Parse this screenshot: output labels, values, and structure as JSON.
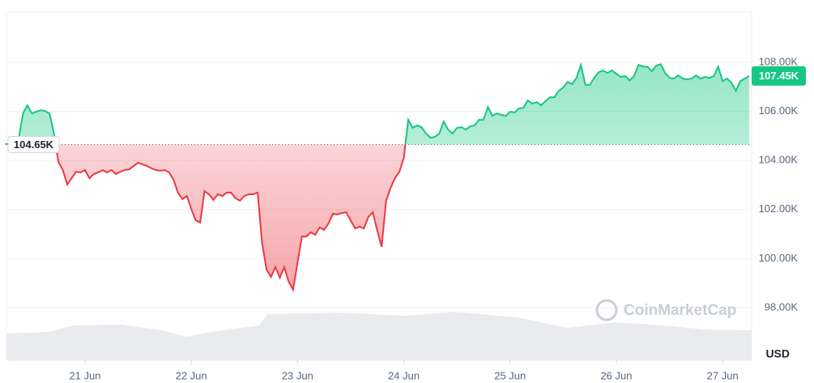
{
  "chart_data": {
    "type": "line",
    "categories": [
      null,
      null,
      null,
      null,
      null,
      null,
      null,
      null,
      null,
      null,
      null,
      null,
      null,
      null,
      null,
      null,
      null,
      null,
      "21 Jun",
      null,
      null,
      null,
      null,
      null,
      null,
      null,
      null,
      null,
      null,
      null,
      null,
      null,
      null,
      null,
      null,
      null,
      null,
      null,
      null,
      null,
      null,
      null,
      "22 Jun",
      null,
      null,
      null,
      null,
      null,
      null,
      null,
      null,
      null,
      null,
      null,
      null,
      null,
      null,
      null,
      null,
      null,
      null,
      null,
      null,
      null,
      null,
      null,
      "23 Jun",
      null,
      null,
      null,
      null,
      null,
      null,
      null,
      null,
      null,
      null,
      null,
      null,
      null,
      null,
      null,
      null,
      null,
      null,
      null,
      null,
      null,
      null,
      null,
      "24 Jun",
      null,
      null,
      null,
      null,
      null,
      null,
      null,
      null,
      null,
      null,
      null,
      null,
      null,
      null,
      null,
      null,
      null,
      null,
      null,
      null,
      null,
      null,
      null,
      "25 Jun",
      null,
      null,
      null,
      null,
      null,
      null,
      null,
      null,
      null,
      null,
      null,
      null,
      null,
      null,
      null,
      null,
      null,
      null,
      null,
      null,
      null,
      null,
      null,
      "26 Jun",
      null,
      null,
      null,
      null,
      null,
      null,
      null,
      null,
      null,
      null,
      null,
      null,
      null,
      null,
      null,
      null,
      null,
      null,
      null,
      null,
      null,
      null,
      null,
      "27 Jun",
      null,
      null,
      null,
      null,
      null,
      null
    ],
    "values": [
      104.67,
      104.67,
      104.7,
      104.86,
      105.92,
      106.25,
      105.92,
      105.99,
      106.05,
      106.02,
      105.92,
      105.1,
      103.94,
      103.61,
      103.02,
      103.28,
      103.54,
      103.51,
      103.61,
      103.28,
      103.45,
      103.51,
      103.61,
      103.51,
      103.61,
      103.45,
      103.54,
      103.61,
      103.64,
      103.78,
      103.91,
      103.84,
      103.78,
      103.68,
      103.61,
      103.58,
      103.61,
      103.51,
      103.21,
      102.69,
      102.42,
      102.55,
      102.03,
      101.56,
      101.47,
      102.75,
      102.62,
      102.39,
      102.62,
      102.55,
      102.69,
      102.69,
      102.46,
      102.36,
      102.55,
      102.62,
      102.62,
      102.69,
      100.64,
      99.55,
      99.25,
      99.65,
      99.22,
      99.65,
      99.06,
      98.73,
      99.82,
      100.9,
      100.9,
      101.07,
      100.97,
      101.27,
      101.17,
      101.43,
      101.83,
      101.8,
      101.86,
      101.89,
      101.56,
      101.23,
      101.3,
      101.23,
      101.7,
      101.89,
      101.14,
      100.48,
      102.36,
      102.88,
      103.28,
      103.54,
      104.11,
      105.66,
      105.33,
      105.43,
      105.36,
      105.1,
      104.93,
      104.96,
      105.1,
      105.59,
      105.26,
      105.1,
      105.33,
      105.36,
      105.26,
      105.39,
      105.43,
      105.66,
      105.66,
      106.18,
      105.82,
      105.92,
      105.86,
      105.82,
      105.99,
      105.96,
      106.12,
      106.15,
      106.45,
      106.32,
      106.38,
      106.25,
      106.42,
      106.58,
      106.58,
      106.84,
      106.98,
      107.21,
      107.11,
      107.37,
      107.9,
      107.08,
      107.08,
      107.37,
      107.6,
      107.67,
      107.57,
      107.67,
      107.54,
      107.41,
      107.44,
      107.27,
      107.44,
      107.9,
      107.83,
      107.83,
      107.64,
      107.87,
      107.93,
      107.57,
      107.37,
      107.34,
      107.47,
      107.34,
      107.31,
      107.34,
      107.47,
      107.34,
      107.41,
      107.37,
      107.44,
      107.83,
      107.24,
      107.34,
      107.17,
      106.84,
      107.24,
      107.34,
      107.45
    ],
    "last_value_label": "107.45K",
    "baseline": {
      "value": 104.65,
      "label": "104.65K"
    },
    "ylim": [
      95.85,
      110.05
    ],
    "yticks": [
      {
        "value": 98,
        "label": "98.00K"
      },
      {
        "value": 100,
        "label": "100.00K"
      },
      {
        "value": 102,
        "label": "102.00K"
      },
      {
        "value": 104,
        "label": "104.00K"
      },
      {
        "value": 106,
        "label": "106.00K"
      },
      {
        "value": 108,
        "label": "108.00K"
      }
    ],
    "y_unit": "USD",
    "watermark": "CoinMarketCap",
    "up_color": "#16c784",
    "down_color": "#ea3943",
    "grid": true
  }
}
